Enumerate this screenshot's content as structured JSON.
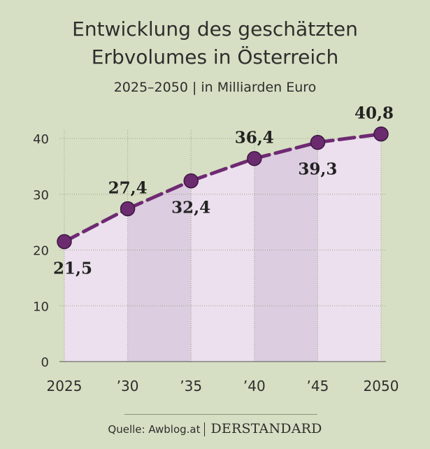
{
  "chart_data": {
    "type": "line",
    "title_line1": "Entwicklung des geschätzten",
    "title_line2": "Erbvolumes in Österreich",
    "subtitle": "2025–2050 | in Milliarden Euro",
    "x": [
      2025,
      2030,
      2035,
      2040,
      2045,
      2050
    ],
    "x_tick_labels": [
      "2025",
      "’30",
      "’35",
      "’40",
      "’45",
      "2050"
    ],
    "values": [
      21.5,
      27.4,
      32.4,
      36.4,
      39.3,
      40.8
    ],
    "data_labels": [
      "21,5",
      "27,4",
      "32,4",
      "36,4",
      "39,3",
      "40,8"
    ],
    "data_label_positions": [
      "below",
      "above",
      "below",
      "above",
      "below",
      "above"
    ],
    "y_ticks": [
      0,
      10,
      20,
      30,
      40
    ],
    "ylim": [
      0,
      40
    ],
    "grid": true,
    "colors": {
      "line": "#6e2a72",
      "marker": "#6b2c6f",
      "area_light": "#ece0ee",
      "area_dark": "#dccde0",
      "grid": "#9aa488",
      "background": "#d6dfc3"
    }
  },
  "footer": {
    "source": "Quelle: Awblog.at",
    "brand_der": "DER",
    "brand_standard": "STANDARD"
  }
}
